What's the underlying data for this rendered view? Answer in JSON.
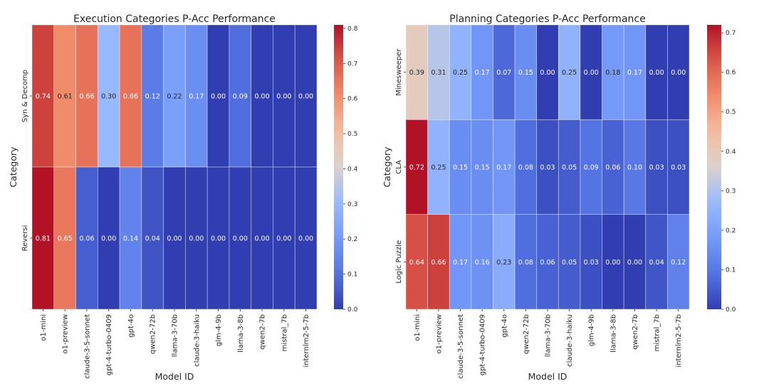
{
  "chart_data": [
    {
      "type": "heatmap",
      "title": "Execution Categories P-Acc Performance",
      "xlabel": "Model ID",
      "ylabel": "Category",
      "categories": [
        "o1-mini",
        "o1-preview",
        "claude-3-5-sonnet",
        "gpt-4-turbo-0409",
        "gpt-4o",
        "qwen2-72b",
        "llama-3-70b",
        "claude-3-haiku",
        "glm-4-9b",
        "llama-3-8b",
        "qwen2-7b",
        "mistral_7b",
        "internlm2-5-7b"
      ],
      "rows": [
        "Syn & Decomp",
        "Reversi"
      ],
      "values": [
        [
          0.74,
          0.61,
          0.66,
          0.3,
          0.66,
          0.12,
          0.22,
          0.17,
          0.0,
          0.09,
          0.0,
          0.0,
          0.0
        ],
        [
          0.81,
          0.65,
          0.06,
          0.0,
          0.14,
          0.04,
          0.0,
          0.0,
          0.0,
          0.0,
          0.0,
          0.0,
          0.0
        ]
      ],
      "colormap": "coolwarm",
      "colorbar": {
        "range": [
          0.0,
          0.81
        ],
        "ticks": [
          "0.0",
          "0.1",
          "0.2",
          "0.3",
          "0.4",
          "0.5",
          "0.6",
          "0.7",
          "0.8"
        ]
      }
    },
    {
      "type": "heatmap",
      "title": "Planning Categories P-Acc Performance",
      "xlabel": "Model ID",
      "ylabel": "Category",
      "categories": [
        "o1-mini",
        "o1-preview",
        "claude-3-5-sonnet",
        "gpt-4-turbo-0409",
        "gpt-4o",
        "qwen2-72b",
        "llama-3-70b",
        "claude-3-haiku",
        "glm-4-9b",
        "llama-3-8b",
        "qwen2-7b",
        "mistral_7b",
        "internlm2-5-7b"
      ],
      "rows": [
        "Minesweeper",
        "CLA",
        "Logic Puzzle"
      ],
      "values": [
        [
          0.39,
          0.31,
          0.25,
          0.17,
          0.07,
          0.15,
          0.0,
          0.25,
          0.0,
          0.18,
          0.17,
          0.0,
          0.0
        ],
        [
          0.72,
          0.25,
          0.15,
          0.15,
          0.17,
          0.08,
          0.03,
          0.05,
          0.09,
          0.06,
          0.1,
          0.03,
          0.03
        ],
        [
          0.64,
          0.66,
          0.17,
          0.16,
          0.23,
          0.08,
          0.06,
          0.05,
          0.03,
          0.0,
          0.0,
          0.04,
          0.12
        ]
      ],
      "colormap": "coolwarm",
      "colorbar": {
        "range": [
          0.0,
          0.72
        ],
        "ticks": [
          "0.0",
          "0.1",
          "0.2",
          "0.3",
          "0.4",
          "0.5",
          "0.6",
          "0.7"
        ]
      }
    }
  ]
}
